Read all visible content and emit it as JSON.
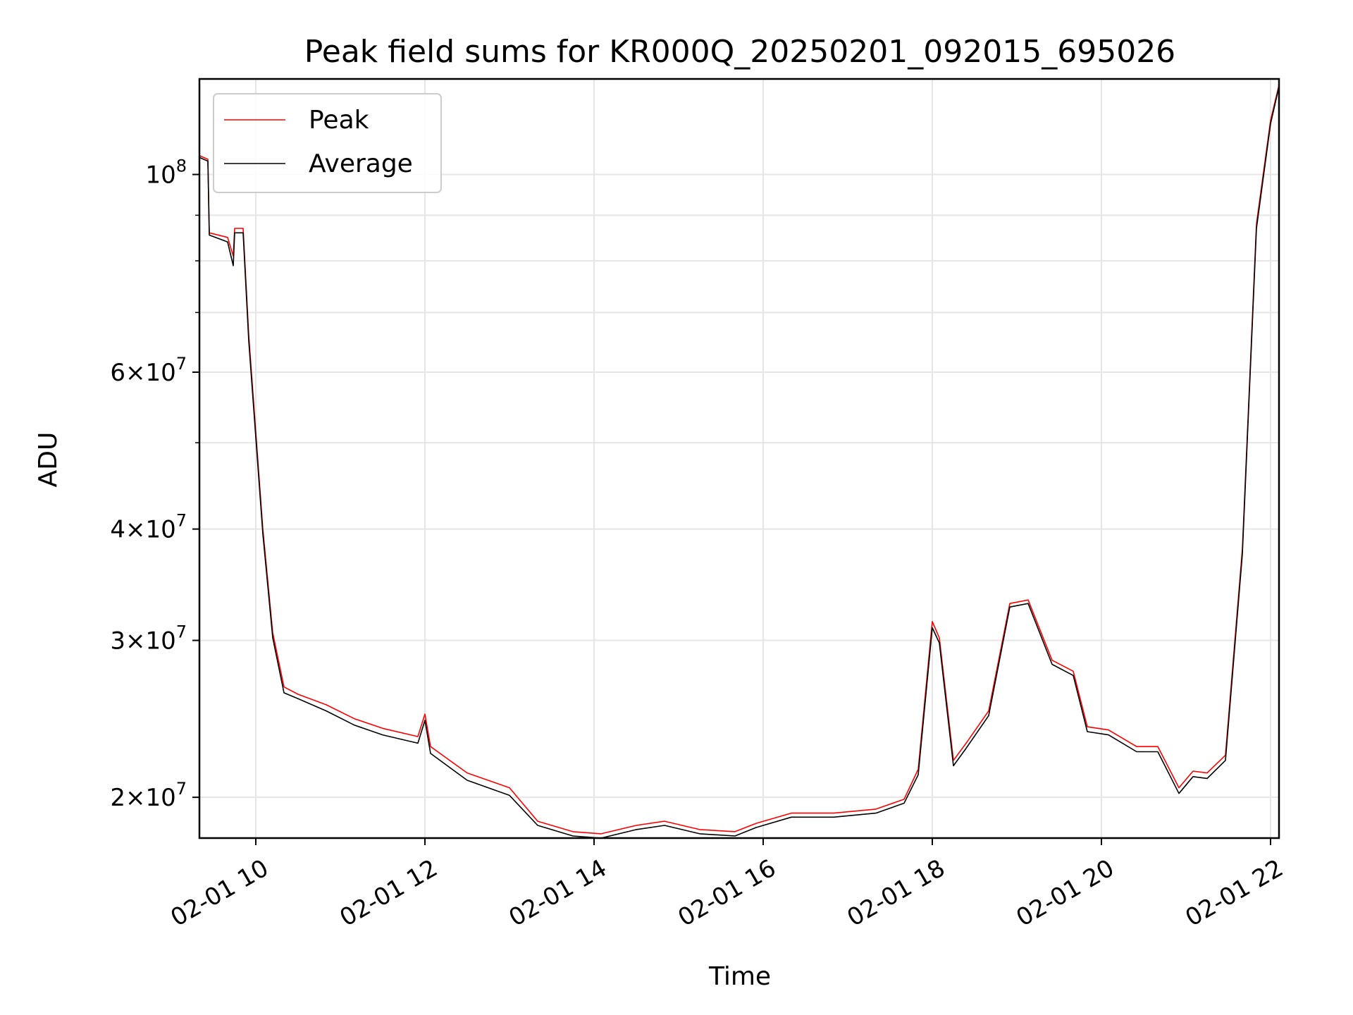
{
  "chart_data": {
    "type": "line",
    "title": "Peak field sums for KR000Q_20250201_092015_695026",
    "xlabel": "Time",
    "ylabel": "ADU",
    "y_scale": "log",
    "x_range": [
      "2025-02-01 09:20",
      "2025-02-01 22:06"
    ],
    "ylim": [
      18000000,
      128000000
    ],
    "grid": true,
    "legend_position": "top-left",
    "x_ticks": [
      {
        "value": "2025-02-01 10:00",
        "label": "02-01 10"
      },
      {
        "value": "2025-02-01 12:00",
        "label": "02-01 12"
      },
      {
        "value": "2025-02-01 14:00",
        "label": "02-01 14"
      },
      {
        "value": "2025-02-01 16:00",
        "label": "02-01 16"
      },
      {
        "value": "2025-02-01 18:00",
        "label": "02-01 18"
      },
      {
        "value": "2025-02-01 20:00",
        "label": "02-01 20"
      },
      {
        "value": "2025-02-01 22:00",
        "label": "02-01 22"
      }
    ],
    "y_ticks": [
      {
        "value": 20000000,
        "mantissa": "2",
        "exp": "7"
      },
      {
        "value": 30000000,
        "mantissa": "3",
        "exp": "7"
      },
      {
        "value": 40000000,
        "mantissa": "4",
        "exp": "7"
      },
      {
        "value": 60000000,
        "mantissa": "6",
        "exp": "7"
      },
      {
        "value": 100000000,
        "mantissa": "",
        "exp": "8"
      }
    ],
    "y_minor_ticks": [
      50000000,
      70000000,
      80000000,
      90000000
    ],
    "series": [
      {
        "name": "Peak",
        "color": "#ff0000",
        "x": [
          "2025-02-01 09:20",
          "2025-02-01 09:26",
          "2025-02-01 09:27",
          "2025-02-01 09:40",
          "2025-02-01 09:44",
          "2025-02-01 09:45",
          "2025-02-01 09:51",
          "2025-02-01 09:55",
          "2025-02-01 10:05",
          "2025-02-01 10:12",
          "2025-02-01 10:20",
          "2025-02-01 10:30",
          "2025-02-01 10:50",
          "2025-02-01 11:10",
          "2025-02-01 11:30",
          "2025-02-01 11:55",
          "2025-02-01 12:00",
          "2025-02-01 12:04",
          "2025-02-01 12:30",
          "2025-02-01 13:00",
          "2025-02-01 13:20",
          "2025-02-01 13:45",
          "2025-02-01 14:05",
          "2025-02-01 14:30",
          "2025-02-01 14:50",
          "2025-02-01 15:15",
          "2025-02-01 15:40",
          "2025-02-01 15:55",
          "2025-02-01 16:20",
          "2025-02-01 16:50",
          "2025-02-01 17:20",
          "2025-02-01 17:40",
          "2025-02-01 17:50",
          "2025-02-01 18:00",
          "2025-02-01 18:05",
          "2025-02-01 18:15",
          "2025-02-01 18:24",
          "2025-02-01 18:40",
          "2025-02-01 18:55",
          "2025-02-01 19:08",
          "2025-02-01 19:25",
          "2025-02-01 19:40",
          "2025-02-01 19:50",
          "2025-02-01 20:05",
          "2025-02-01 20:25",
          "2025-02-01 20:40",
          "2025-02-01 20:55",
          "2025-02-01 21:05",
          "2025-02-01 21:15",
          "2025-02-01 21:28",
          "2025-02-01 21:40",
          "2025-02-01 21:50",
          "2025-02-01 22:00",
          "2025-02-01 22:06"
        ],
        "values": [
          105000000,
          104000000,
          86000000,
          85000000,
          81000000,
          87000000,
          87000000,
          66000000,
          40000000,
          30600000,
          26600000,
          26100000,
          25400000,
          24500000,
          23900000,
          23400000,
          24800000,
          22800000,
          21300000,
          20500000,
          18800000,
          18300000,
          18200000,
          18600000,
          18800000,
          18400000,
          18300000,
          18700000,
          19200000,
          19200000,
          19400000,
          19900000,
          21500000,
          31500000,
          30200000,
          22000000,
          23000000,
          25000000,
          33000000,
          33300000,
          28500000,
          27700000,
          24000000,
          23800000,
          22800000,
          22800000,
          20500000,
          21400000,
          21300000,
          22300000,
          38000000,
          88000000,
          115000000,
          126000000
        ]
      },
      {
        "name": "Average",
        "color": "#000000",
        "x": [
          "2025-02-01 09:20",
          "2025-02-01 09:26",
          "2025-02-01 09:27",
          "2025-02-01 09:40",
          "2025-02-01 09:44",
          "2025-02-01 09:45",
          "2025-02-01 09:51",
          "2025-02-01 09:55",
          "2025-02-01 10:05",
          "2025-02-01 10:12",
          "2025-02-01 10:20",
          "2025-02-01 10:30",
          "2025-02-01 10:50",
          "2025-02-01 11:10",
          "2025-02-01 11:30",
          "2025-02-01 11:55",
          "2025-02-01 12:00",
          "2025-02-01 12:04",
          "2025-02-01 12:30",
          "2025-02-01 13:00",
          "2025-02-01 13:20",
          "2025-02-01 13:45",
          "2025-02-01 14:05",
          "2025-02-01 14:30",
          "2025-02-01 14:50",
          "2025-02-01 15:15",
          "2025-02-01 15:40",
          "2025-02-01 15:55",
          "2025-02-01 16:20",
          "2025-02-01 16:50",
          "2025-02-01 17:20",
          "2025-02-01 17:40",
          "2025-02-01 17:50",
          "2025-02-01 18:00",
          "2025-02-01 18:05",
          "2025-02-01 18:15",
          "2025-02-01 18:24",
          "2025-02-01 18:40",
          "2025-02-01 18:55",
          "2025-02-01 19:08",
          "2025-02-01 19:25",
          "2025-02-01 19:40",
          "2025-02-01 19:50",
          "2025-02-01 20:05",
          "2025-02-01 20:25",
          "2025-02-01 20:40",
          "2025-02-01 20:55",
          "2025-02-01 21:05",
          "2025-02-01 21:15",
          "2025-02-01 21:28",
          "2025-02-01 21:40",
          "2025-02-01 21:50",
          "2025-02-01 22:00",
          "2025-02-01 22:06"
        ],
        "values": [
          104500000,
          103500000,
          85500000,
          84000000,
          79000000,
          86000000,
          86000000,
          65000000,
          39500000,
          30200000,
          26200000,
          25800000,
          25000000,
          24100000,
          23500000,
          23000000,
          24400000,
          22400000,
          20900000,
          20100000,
          18600000,
          18100000,
          18000000,
          18400000,
          18600000,
          18200000,
          18100000,
          18500000,
          19000000,
          19000000,
          19200000,
          19700000,
          21200000,
          31000000,
          29800000,
          21700000,
          22700000,
          24700000,
          32700000,
          33000000,
          28200000,
          27400000,
          23700000,
          23500000,
          22500000,
          22500000,
          20200000,
          21100000,
          21000000,
          22000000,
          37500000,
          87000000,
          114000000,
          125500000
        ]
      }
    ]
  }
}
